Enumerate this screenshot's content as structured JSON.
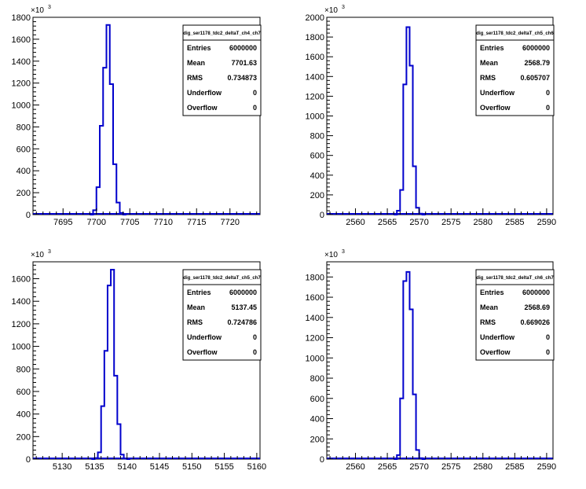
{
  "chart_data": [
    {
      "type": "bar",
      "title": "",
      "hist_name": "dig_ser1178_tdc2_deltaT_ch4_ch7",
      "y_exponent": "×10",
      "y_exponent_power": "3",
      "xlim": [
        7690.5,
        7724.5
      ],
      "ylim": [
        0,
        1800
      ],
      "xticks": [
        "7695",
        "7700",
        "7705",
        "7710",
        "7715",
        "7720"
      ],
      "xtick_values": [
        7695,
        7700,
        7705,
        7710,
        7715,
        7720
      ],
      "yticks": [
        "0",
        "200",
        "400",
        "600",
        "800",
        "1000",
        "1200",
        "1400",
        "1600",
        "1800"
      ],
      "ytick_values": [
        0,
        200,
        400,
        600,
        800,
        1000,
        1200,
        1400,
        1600,
        1800
      ],
      "bin_width": 0.5,
      "bins": [
        {
          "x": 7699.0,
          "y": 0
        },
        {
          "x": 7699.5,
          "y": 40
        },
        {
          "x": 7700.0,
          "y": 250
        },
        {
          "x": 7700.5,
          "y": 810
        },
        {
          "x": 7701.0,
          "y": 1340
        },
        {
          "x": 7701.5,
          "y": 1730
        },
        {
          "x": 7702.0,
          "y": 1190
        },
        {
          "x": 7702.5,
          "y": 460
        },
        {
          "x": 7703.0,
          "y": 110
        },
        {
          "x": 7703.5,
          "y": 15
        },
        {
          "x": 7704.0,
          "y": 0
        }
      ],
      "stats": [
        {
          "label": "Entries",
          "value": "6000000"
        },
        {
          "label": "Mean",
          "value": "7701.63"
        },
        {
          "label": "RMS",
          "value": "0.734873"
        },
        {
          "label": "Underflow",
          "value": "0"
        },
        {
          "label": "Overflow",
          "value": "0"
        }
      ]
    },
    {
      "type": "bar",
      "title": "",
      "hist_name": "dig_ser1178_tdc2_deltaT_ch5_ch6",
      "y_exponent": "×10",
      "y_exponent_power": "3",
      "xlim": [
        2555.5,
        2591
      ],
      "ylim": [
        0,
        2000
      ],
      "xticks": [
        "2560",
        "2565",
        "2570",
        "2575",
        "2580",
        "2585",
        "2590"
      ],
      "xtick_values": [
        2560,
        2565,
        2570,
        2575,
        2580,
        2585,
        2590
      ],
      "yticks": [
        "0",
        "200",
        "400",
        "600",
        "800",
        "1000",
        "1200",
        "1400",
        "1600",
        "1800",
        "2000"
      ],
      "ytick_values": [
        0,
        200,
        400,
        600,
        800,
        1000,
        1200,
        1400,
        1600,
        1800,
        2000
      ],
      "bin_width": 0.5,
      "bins": [
        {
          "x": 2566.0,
          "y": 0
        },
        {
          "x": 2566.5,
          "y": 40
        },
        {
          "x": 2567.0,
          "y": 250
        },
        {
          "x": 2567.5,
          "y": 1320
        },
        {
          "x": 2568.0,
          "y": 1900
        },
        {
          "x": 2568.5,
          "y": 1510
        },
        {
          "x": 2569.0,
          "y": 490
        },
        {
          "x": 2569.5,
          "y": 70
        },
        {
          "x": 2570.0,
          "y": 10
        },
        {
          "x": 2570.5,
          "y": 0
        }
      ],
      "stats": [
        {
          "label": "Entries",
          "value": "6000000"
        },
        {
          "label": "Mean",
          "value": "2568.79"
        },
        {
          "label": "RMS",
          "value": "0.605707"
        },
        {
          "label": "Underflow",
          "value": "0"
        },
        {
          "label": "Overflow",
          "value": "0"
        }
      ]
    },
    {
      "type": "bar",
      "title": "",
      "hist_name": "dig_ser1178_tdc2_deltaT_ch5_ch7",
      "y_exponent": "×10",
      "y_exponent_power": "3",
      "xlim": [
        5125.5,
        5160.5
      ],
      "ylim": [
        0,
        1750
      ],
      "xticks": [
        "5130",
        "5135",
        "5140",
        "5145",
        "5150",
        "5155",
        "5160"
      ],
      "xtick_values": [
        5130,
        5135,
        5140,
        5145,
        5150,
        5155,
        5160
      ],
      "yticks": [
        "0",
        "200",
        "400",
        "600",
        "800",
        "1000",
        "1200",
        "1400",
        "1600"
      ],
      "ytick_values": [
        0,
        200,
        400,
        600,
        800,
        1000,
        1200,
        1400,
        1600
      ],
      "bin_width": 0.5,
      "bins": [
        {
          "x": 5134.5,
          "y": 0
        },
        {
          "x": 5135.0,
          "y": 10
        },
        {
          "x": 5135.5,
          "y": 60
        },
        {
          "x": 5136.0,
          "y": 470
        },
        {
          "x": 5136.5,
          "y": 960
        },
        {
          "x": 5137.0,
          "y": 1540
        },
        {
          "x": 5137.5,
          "y": 1680
        },
        {
          "x": 5138.0,
          "y": 740
        },
        {
          "x": 5138.5,
          "y": 310
        },
        {
          "x": 5139.0,
          "y": 40
        },
        {
          "x": 5139.5,
          "y": 5
        },
        {
          "x": 5140.0,
          "y": 0
        }
      ],
      "stats": [
        {
          "label": "Entries",
          "value": "6000000"
        },
        {
          "label": "Mean",
          "value": "5137.45"
        },
        {
          "label": "RMS",
          "value": "0.724786"
        },
        {
          "label": "Underflow",
          "value": "0"
        },
        {
          "label": "Overflow",
          "value": "0"
        }
      ]
    },
    {
      "type": "bar",
      "title": "",
      "hist_name": "dig_ser1178_tdc2_deltaT_ch6_ch7",
      "y_exponent": "×10",
      "y_exponent_power": "3",
      "xlim": [
        2555.5,
        2591
      ],
      "ylim": [
        0,
        1950
      ],
      "xticks": [
        "2560",
        "2565",
        "2570",
        "2575",
        "2580",
        "2585",
        "2590"
      ],
      "xtick_values": [
        2560,
        2565,
        2570,
        2575,
        2580,
        2585,
        2590
      ],
      "yticks": [
        "0",
        "200",
        "400",
        "600",
        "800",
        "1000",
        "1200",
        "1400",
        "1600",
        "1800"
      ],
      "ytick_values": [
        0,
        200,
        400,
        600,
        800,
        1000,
        1200,
        1400,
        1600,
        1800
      ],
      "bin_width": 0.5,
      "bins": [
        {
          "x": 2566.0,
          "y": 0
        },
        {
          "x": 2566.5,
          "y": 40
        },
        {
          "x": 2567.0,
          "y": 600
        },
        {
          "x": 2567.5,
          "y": 1760
        },
        {
          "x": 2568.0,
          "y": 1850
        },
        {
          "x": 2568.5,
          "y": 1480
        },
        {
          "x": 2569.0,
          "y": 640
        },
        {
          "x": 2569.5,
          "y": 90
        },
        {
          "x": 2570.0,
          "y": 10
        },
        {
          "x": 2570.5,
          "y": 0
        }
      ],
      "stats": [
        {
          "label": "Entries",
          "value": "6000000"
        },
        {
          "label": "Mean",
          "value": "2568.69"
        },
        {
          "label": "RMS",
          "value": "0.669026"
        },
        {
          "label": "Underflow",
          "value": "0"
        },
        {
          "label": "Overflow",
          "value": "0"
        }
      ]
    }
  ],
  "colors": {
    "histogram_line": "#0000cc",
    "axis": "#000000",
    "background": "#ffffff"
  }
}
